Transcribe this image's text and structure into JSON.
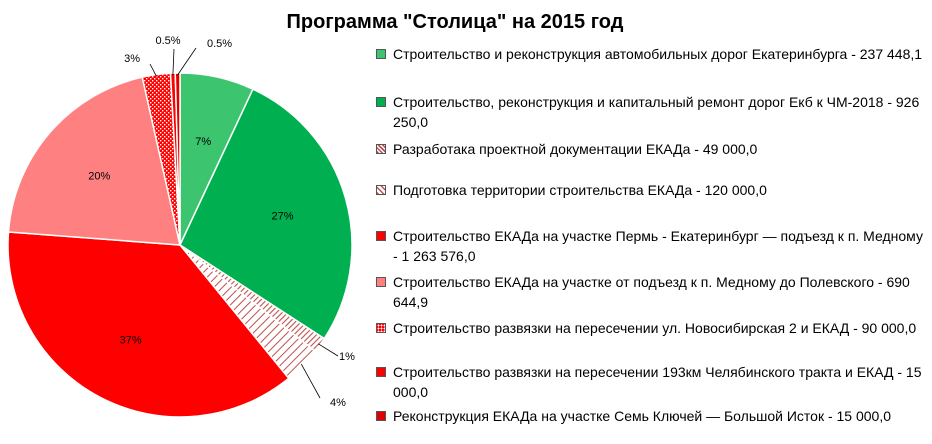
{
  "chart_data": {
    "type": "pie",
    "title": "Программа \"Столица\" на 2015 год",
    "slices": [
      {
        "label": "Строительство и реконструкция автомобильных дорог Екатеринбурга - 237 448,1",
        "value": 237448.1,
        "percent_label": "7%",
        "color": "#3cc46f",
        "pattern": "solid"
      },
      {
        "label": "Строительство, реконструкция и капитальный ремонт дорог Екб к ЧМ-2018 - 926 250,0",
        "value": 926250.0,
        "percent_label": "27%",
        "color": "#00b050",
        "pattern": "solid"
      },
      {
        "label": "Разработака проектной документации ЕКАДа - 49 000,0",
        "value": 49000.0,
        "percent_label": "1%",
        "color": "#c0504d",
        "pattern": "hatch-dense"
      },
      {
        "label": "Подготовка территории строительства ЕКАДа - 120 000,0",
        "value": 120000.0,
        "percent_label": "4%",
        "color": "#c0504d",
        "pattern": "hatch-wide"
      },
      {
        "label": "Строительство ЕКАДа на участке Пермь - Екатеринбург — подъезд к п. Медному - 1 263 576,0",
        "value": 1263576.0,
        "percent_label": "37%",
        "color": "#ff0000",
        "pattern": "solid"
      },
      {
        "label": "Строительство ЕКАДа на участке от подъезд к п. Медному до Полевского - 690 644,9",
        "value": 690644.9,
        "percent_label": "20%",
        "color": "#ff8080",
        "pattern": "solid"
      },
      {
        "label": "Строительство развязки на пересечении  ул. Новосибирская 2 и ЕКАД - 90 000,0",
        "value": 90000.0,
        "percent_label": "3%",
        "color": "#ff0000",
        "pattern": "dots"
      },
      {
        "label": "Строительство развязки на пересечении  193км Челябинского тракта и ЕКАД - 15 000,0",
        "value": 15000.0,
        "percent_label": "0.5%",
        "color": "#ff0000",
        "pattern": "solid"
      },
      {
        "label": "Реконструкция ЕКАДа на участке Семь Ключей — Большой Исток - 15 000,0",
        "value": 15000.0,
        "percent_label": "0.5%",
        "color": "#e00000",
        "pattern": "solid"
      }
    ],
    "legend_position": "right"
  }
}
